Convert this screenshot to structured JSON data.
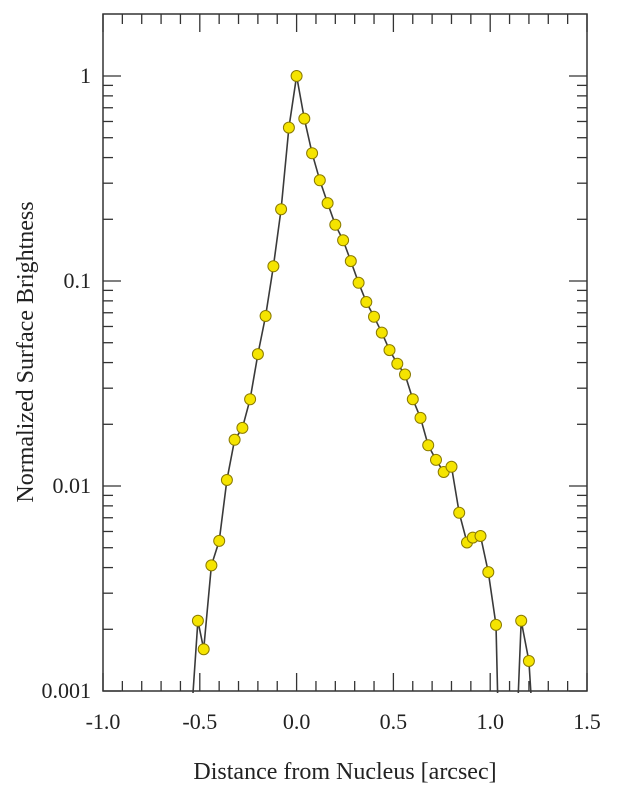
{
  "chart_data": {
    "type": "scatter",
    "title": "",
    "xlabel": "Distance from Nucleus [arcsec]",
    "ylabel": "Normalized Surface Brightness",
    "xlim": [
      -1.0,
      1.5
    ],
    "ylim": [
      0.001,
      1.9
    ],
    "yscale": "log",
    "xticks": [
      -1.0,
      -0.5,
      0.0,
      0.5,
      1.0,
      1.5
    ],
    "xtick_labels": [
      "-1.0",
      "-0.5",
      "0.0",
      "0.5",
      "1.0",
      "1.5"
    ],
    "yticks": [
      0.001,
      0.01,
      0.1,
      1
    ],
    "ytick_labels": [
      "0.001",
      "0.01",
      "0.1",
      "1"
    ],
    "grid": false,
    "colors": {
      "marker_fill": "#f5e400",
      "marker_edge": "#8a7a00",
      "line": "#3a3a3a"
    },
    "series": [
      {
        "points": [
          [
            -0.51,
            0.0022
          ],
          [
            -0.48,
            0.0016
          ],
          [
            -0.44,
            0.0041
          ],
          [
            -0.4,
            0.0054
          ],
          [
            -0.36,
            0.0107
          ],
          [
            -0.32,
            0.0168
          ],
          [
            -0.28,
            0.0192
          ],
          [
            -0.24,
            0.0265
          ],
          [
            -0.2,
            0.044
          ],
          [
            -0.16,
            0.0675
          ],
          [
            -0.12,
            0.118
          ],
          [
            -0.08,
            0.224
          ],
          [
            -0.04,
            0.56
          ],
          [
            0.0,
            1.0
          ],
          [
            0.04,
            0.62
          ],
          [
            0.08,
            0.42
          ],
          [
            0.12,
            0.31
          ],
          [
            0.16,
            0.24
          ],
          [
            0.2,
            0.188
          ],
          [
            0.24,
            0.158
          ],
          [
            0.28,
            0.125
          ],
          [
            0.32,
            0.098
          ],
          [
            0.36,
            0.079
          ],
          [
            0.4,
            0.067
          ],
          [
            0.44,
            0.056
          ],
          [
            0.48,
            0.046
          ],
          [
            0.52,
            0.0395
          ],
          [
            0.56,
            0.035
          ],
          [
            0.6,
            0.0265
          ],
          [
            0.64,
            0.0215
          ],
          [
            0.68,
            0.0158
          ],
          [
            0.72,
            0.0134
          ],
          [
            0.76,
            0.0117
          ],
          [
            0.8,
            0.0124
          ],
          [
            0.84,
            0.0074
          ],
          [
            0.88,
            0.0053
          ],
          [
            0.91,
            0.0056
          ],
          [
            0.95,
            0.0057
          ],
          [
            0.99,
            0.0038
          ],
          [
            1.03,
            0.0021
          ],
          [
            1.16,
            0.0022
          ],
          [
            1.2,
            0.0014
          ]
        ]
      }
    ]
  }
}
